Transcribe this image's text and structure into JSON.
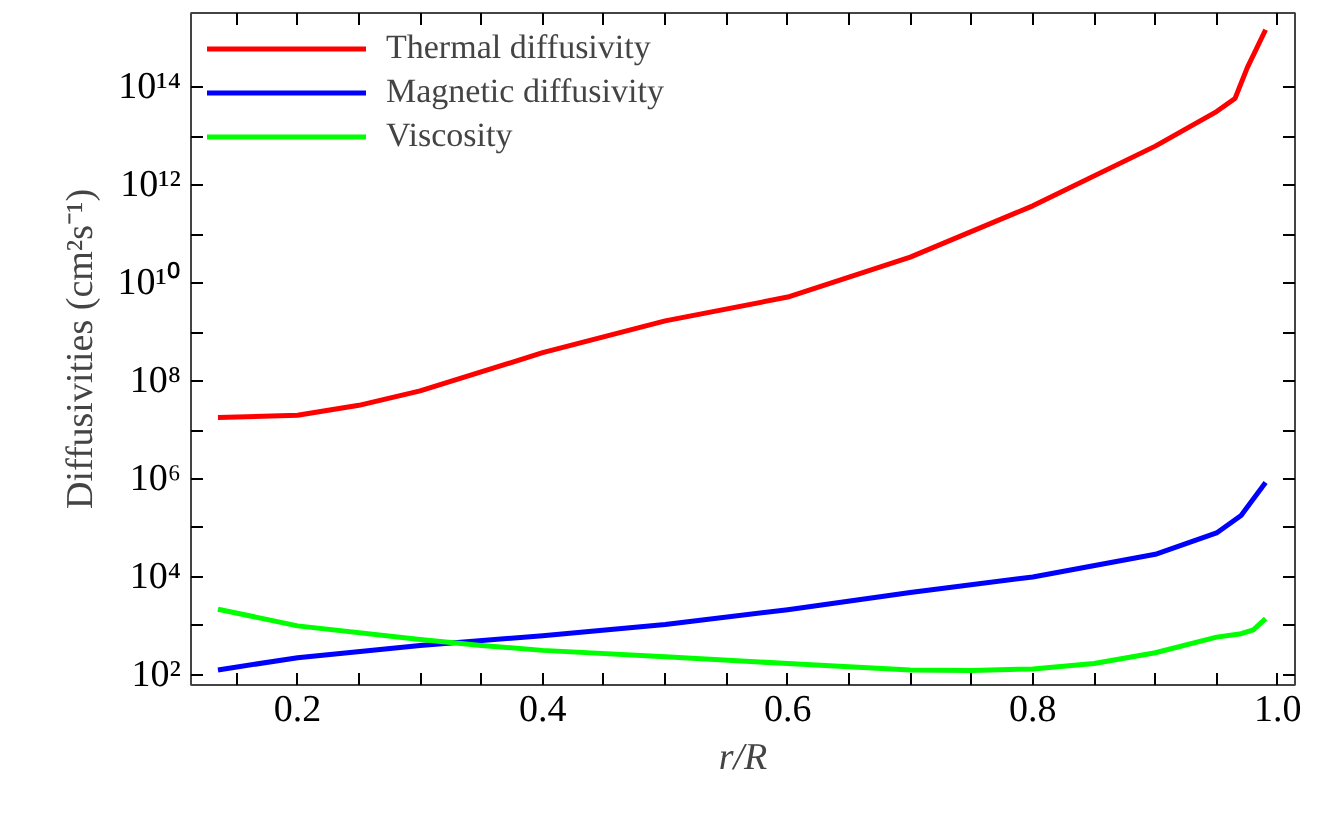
{
  "chart_data": {
    "type": "line",
    "xlabel": "r/R",
    "ylabel": "Diffusivities (cm²s⁻¹)",
    "log": "y",
    "grid": false,
    "legend": "top left",
    "marker": "none",
    "line_style": "solid",
    "xlim": [
      0.113,
      1.014
    ],
    "ylim": [
      62,
      3300000000000000.0
    ],
    "xticks": [
      {
        "value": 0.15,
        "label": null
      },
      0.2,
      {
        "value": 0.25,
        "label": null
      },
      {
        "value": 0.3,
        "label": null
      },
      {
        "value": 0.35,
        "label": null
      },
      0.4,
      {
        "value": 0.45,
        "label": null
      },
      {
        "value": 0.5,
        "label": null
      },
      {
        "value": 0.55,
        "label": null
      },
      0.6,
      {
        "value": 0.65,
        "label": null
      },
      {
        "value": 0.7,
        "label": null
      },
      {
        "value": 0.75,
        "label": null
      },
      0.8,
      {
        "value": 0.85,
        "label": null
      },
      {
        "value": 0.9,
        "label": null
      },
      {
        "value": 0.95,
        "label": null
      },
      {
        "value": 1.0,
        "label": "1.0"
      }
    ],
    "yticks": [
      {
        "value": 100,
        "label": "10²"
      },
      {
        "value": 1000,
        "label": null
      },
      {
        "value": 10000,
        "label": "10⁴"
      },
      {
        "value": 100000,
        "label": null
      },
      {
        "value": 1000000,
        "label": "10⁶"
      },
      {
        "value": 10000000,
        "label": null
      },
      {
        "value": 100000000,
        "label": "10⁸"
      },
      {
        "value": 1000000000,
        "label": null
      },
      {
        "value": 10000000000,
        "label": "10¹⁰"
      },
      {
        "value": 100000000000,
        "label": null
      },
      {
        "value": 1000000000000,
        "label": "10¹²"
      },
      {
        "value": 10000000000000,
        "label": null
      },
      {
        "value": 100000000000000,
        "label": "10¹⁴"
      }
    ],
    "series": [
      {
        "name": "Thermal diffusivity",
        "color": "#ff0000",
        "x": [
          0.135,
          0.2,
          0.25,
          0.3,
          0.4,
          0.5,
          0.6,
          0.7,
          0.8,
          0.9,
          0.95,
          0.965,
          0.975,
          0.99
        ],
        "values": [
          18000000.0,
          20000000.0,
          32000000.0,
          63000000.0,
          380000000.0,
          1700000000.0,
          5200000000.0,
          34000000000.0,
          380000000000.0,
          6300000000000.0,
          32000000000000.0,
          59000000000000.0,
          250000000000000.0,
          1500000000000000.0
        ]
      },
      {
        "name": "Magnetic diffusivity",
        "color": "#0000ff",
        "x": [
          0.135,
          0.2,
          0.3,
          0.4,
          0.5,
          0.6,
          0.7,
          0.8,
          0.9,
          0.95,
          0.97,
          0.99
        ],
        "values": [
          126,
          224,
          398,
          631,
          1070,
          2140,
          4790,
          10000,
          29000,
          79000,
          180000,
          850000
        ]
      },
      {
        "name": "Viscosity",
        "color": "#00ff00",
        "x": [
          0.135,
          0.2,
          0.3,
          0.35,
          0.4,
          0.5,
          0.6,
          0.7,
          0.75,
          0.8,
          0.85,
          0.9,
          0.95,
          0.97,
          0.98,
          0.99
        ],
        "values": [
          2190,
          1000,
          525,
          398,
          316,
          234,
          170,
          126,
          123,
          132,
          170,
          282,
          589,
          692,
          832,
          1410
        ]
      }
    ]
  }
}
